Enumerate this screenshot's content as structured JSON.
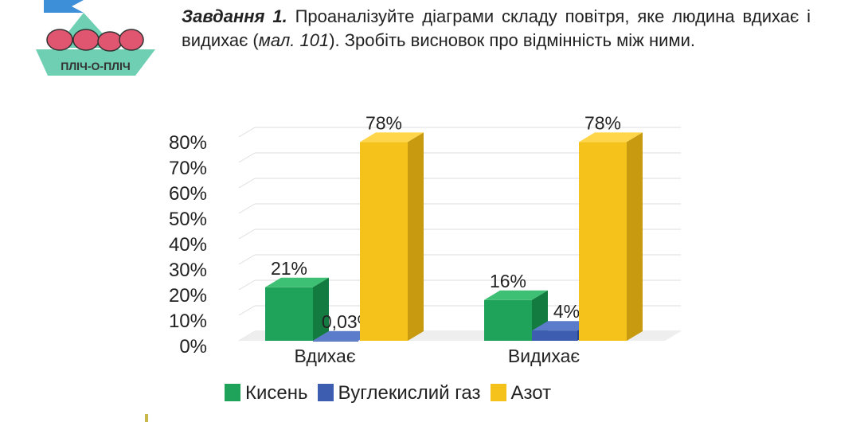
{
  "logo": {
    "text": "ПЛІЧ-О-ПЛІЧ"
  },
  "task": {
    "title": "Завдання 1.",
    "text_before": " Проаналізуйте діаграми складу повітря, яке людина вдихає і видихає (",
    "ref": "мал. 101",
    "text_after": "). Зробіть висновок про відмінність між ними."
  },
  "colors": {
    "green": "#1fa35a",
    "blue": "#3d5eb0",
    "yellow": "#f5c21b"
  },
  "chart_data": {
    "type": "bar",
    "categories": [
      "Вдихає",
      "Видихає"
    ],
    "series": [
      {
        "name": "Кисень",
        "values": [
          21,
          16
        ],
        "labels": [
          "21%",
          "16%"
        ]
      },
      {
        "name": "Вуглекислий газ",
        "values": [
          0.03,
          4
        ],
        "labels": [
          "0,03%",
          "4%"
        ]
      },
      {
        "name": "Азот",
        "values": [
          78,
          78
        ],
        "labels": [
          "78%",
          "78%"
        ]
      }
    ],
    "yticks": [
      "0%",
      "10%",
      "20%",
      "30%",
      "40%",
      "50%",
      "60%",
      "70%",
      "80%"
    ],
    "ylim": [
      0,
      80
    ],
    "legend": "bottom",
    "grid": true
  }
}
